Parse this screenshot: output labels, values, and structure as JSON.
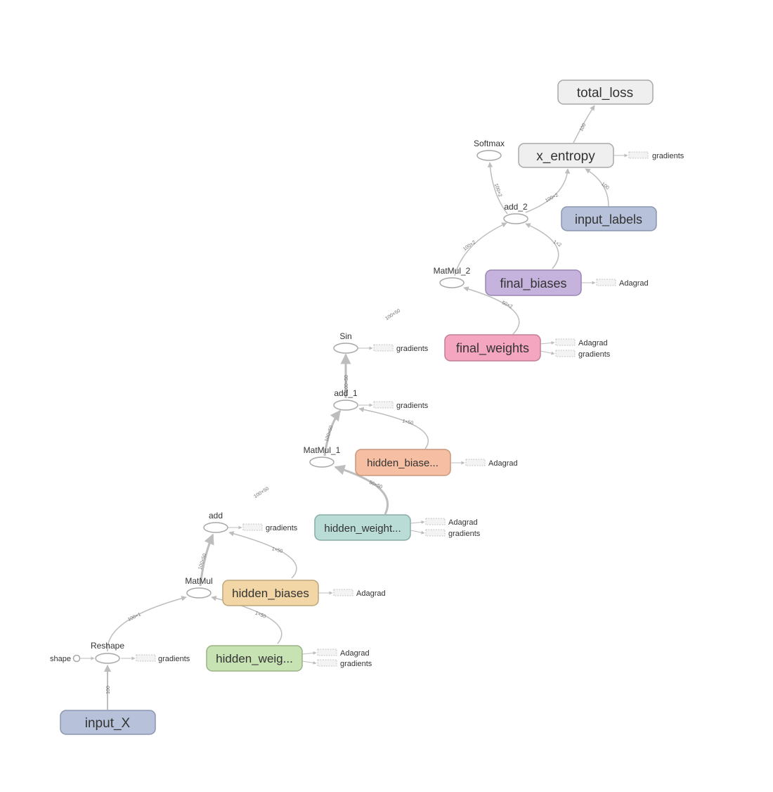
{
  "nodes": {
    "total_loss": {
      "label": "total_loss",
      "fill": "#efefef",
      "stroke": "#a8a8a8"
    },
    "x_entropy": {
      "label": "x_entropy",
      "fill": "#efefef",
      "stroke": "#a8a8a8"
    },
    "input_labels": {
      "label": "input_labels",
      "fill": "#b7c1d9",
      "stroke": "#8a95b0"
    },
    "final_biases": {
      "label": "final_biases",
      "fill": "#c6b3dd",
      "stroke": "#9a86b4"
    },
    "final_weights": {
      "label": "final_weights",
      "fill": "#f4a6c0",
      "stroke": "#c47d96"
    },
    "hidden_biases_1": {
      "label": "hidden_biase...",
      "fill": "#f6bfa3",
      "stroke": "#c8967d"
    },
    "hidden_weights_1": {
      "label": "hidden_weight...",
      "fill": "#b9dcd7",
      "stroke": "#89aba6"
    },
    "hidden_biases": {
      "label": "hidden_biases",
      "fill": "#f3d6a6",
      "stroke": "#bca57b"
    },
    "hidden_weights": {
      "label": "hidden_weig...",
      "fill": "#c7e2b3",
      "stroke": "#98b485"
    },
    "input_X": {
      "label": "input_X",
      "fill": "#b7c1d9",
      "stroke": "#8a95b0"
    }
  },
  "ops": {
    "softmax": "Softmax",
    "add_2": "add_2",
    "matmul_2": "MatMul_2",
    "sin": "Sin",
    "add_1": "add_1",
    "matmul_1": "MatMul_1",
    "add": "add",
    "matmul": "MatMul",
    "reshape": "Reshape",
    "shape": "shape"
  },
  "aux": {
    "gradients": "gradients",
    "adagrad": "Adagrad"
  },
  "edges": {
    "e100": "100",
    "e100x2": "100×2",
    "e1x2": "1×2",
    "e50x2": "50×2",
    "e100x50": "100×50",
    "e1x50": "1×50",
    "e50x50": "50×50",
    "e100x1": "100×1"
  },
  "colors": {
    "edge": "#bdbdbd",
    "op_stroke": "#a8a8a8",
    "aux_fill": "#f3f3f3",
    "aux_stroke": "#b8b8b8"
  }
}
